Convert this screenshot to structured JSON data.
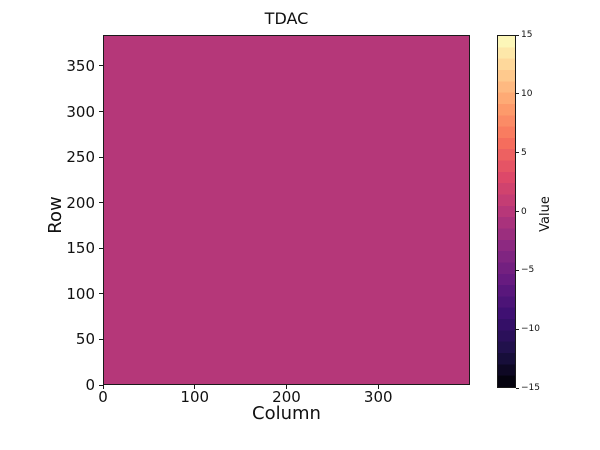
{
  "chart_data": {
    "type": "heatmap",
    "title": "TDAC",
    "xlabel": "Column",
    "ylabel": "Row",
    "colorbar_label": "Value",
    "colormap": "magma",
    "value_range": [
      -15,
      15
    ],
    "x_range": [
      0,
      400
    ],
    "y_range": [
      0,
      384
    ],
    "x_ticks": [
      0,
      100,
      200,
      300
    ],
    "y_ticks": [
      0,
      50,
      100,
      150,
      200,
      250,
      300,
      350
    ],
    "colorbar_ticks": [
      {
        "value": 15,
        "label": "15"
      },
      {
        "value": 10,
        "label": "10"
      },
      {
        "value": 5,
        "label": "5"
      },
      {
        "value": 0,
        "label": "0"
      },
      {
        "value": -5,
        "label": "−5"
      },
      {
        "value": -10,
        "label": "−10"
      },
      {
        "value": -15,
        "label": "−15"
      }
    ],
    "data": {
      "n_columns": 400,
      "n_rows": 384,
      "uniform_value": 0
    },
    "legend": "none",
    "grid": false
  },
  "colors": {
    "background": "#ffffff",
    "heatmap_fill": "#b53779",
    "spine": "#1a1a1a",
    "text": "#111111",
    "magma_stops": [
      {
        "frac": 1.0,
        "color": "#fcfdbf"
      },
      {
        "frac": 0.9,
        "color": "#fecf92"
      },
      {
        "frac": 0.8,
        "color": "#fe9f6d"
      },
      {
        "frac": 0.7,
        "color": "#f7705c"
      },
      {
        "frac": 0.6,
        "color": "#de4968"
      },
      {
        "frac": 0.5,
        "color": "#b73779"
      },
      {
        "frac": 0.4,
        "color": "#8c2981"
      },
      {
        "frac": 0.3,
        "color": "#641a80"
      },
      {
        "frac": 0.2,
        "color": "#3b0f70"
      },
      {
        "frac": 0.1,
        "color": "#1d1147"
      },
      {
        "frac": 0.0,
        "color": "#000004"
      }
    ]
  }
}
